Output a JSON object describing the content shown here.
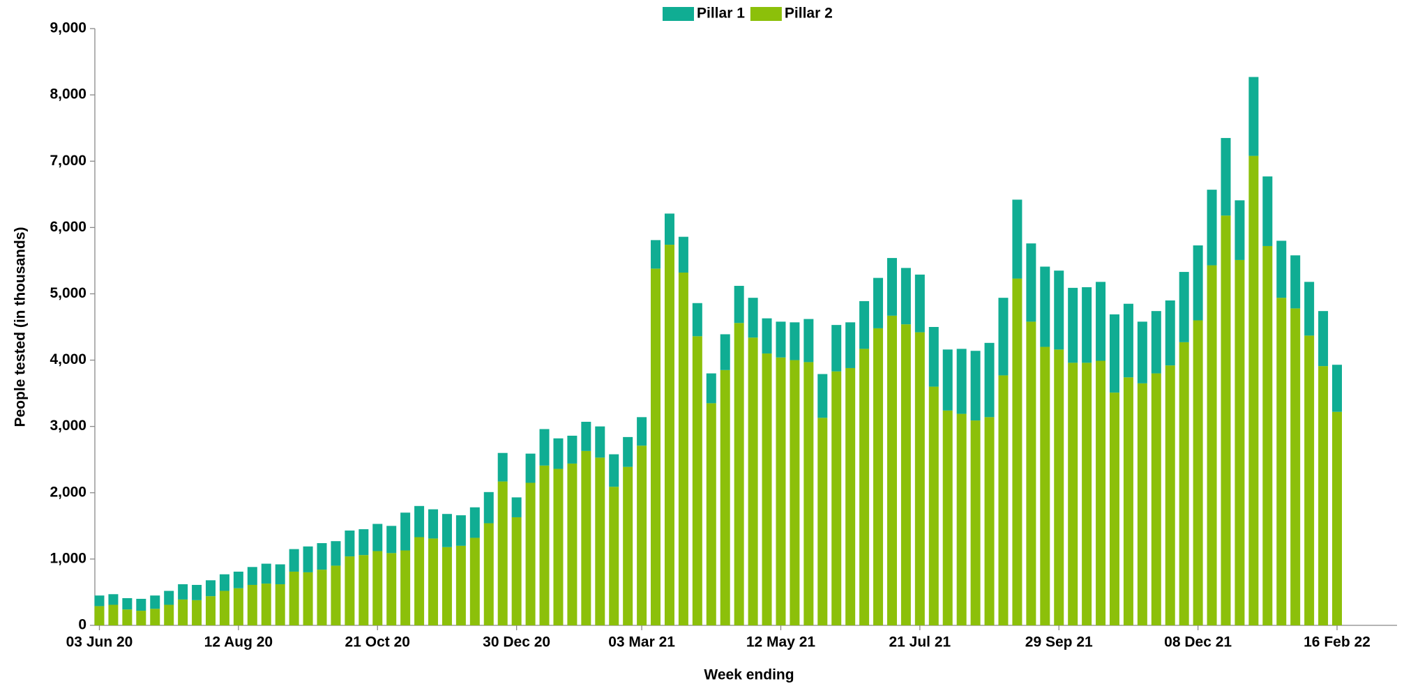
{
  "chart_data": {
    "type": "stacked_bar",
    "xlabel": "Week ending",
    "ylabel": "People tested (in thousands)",
    "categories": [
      "03 Jun 20",
      null,
      null,
      null,
      null,
      null,
      null,
      null,
      null,
      null,
      "12 Aug 20",
      null,
      null,
      null,
      null,
      null,
      null,
      null,
      null,
      null,
      "21 Oct 20",
      null,
      null,
      null,
      null,
      null,
      null,
      null,
      null,
      null,
      "30 Dec 20",
      null,
      null,
      null,
      null,
      null,
      null,
      null,
      null,
      "03 Mar 21",
      null,
      null,
      null,
      null,
      null,
      null,
      null,
      null,
      null,
      "12 May 21",
      null,
      null,
      null,
      null,
      null,
      null,
      null,
      null,
      null,
      "21 Jul 21",
      null,
      null,
      null,
      null,
      null,
      null,
      null,
      null,
      null,
      "29 Sep 21",
      null,
      null,
      null,
      null,
      null,
      null,
      null,
      null,
      null,
      "08 Dec 21",
      null,
      null,
      null,
      null,
      null,
      null,
      null,
      null,
      null,
      "16 Feb 22"
    ],
    "series": [
      {
        "name": "Pillar 1",
        "color": "#10ad93",
        "values": [
          160,
          160,
          170,
          180,
          200,
          210,
          230,
          230,
          240,
          250,
          250,
          270,
          300,
          300,
          340,
          390,
          400,
          370,
          390,
          390,
          410,
          410,
          570,
          470,
          440,
          500,
          460,
          460,
          470,
          430,
          300,
          440,
          550,
          460,
          420,
          440,
          470,
          490,
          450,
          430,
          430,
          470,
          540,
          500,
          450,
          540,
          560,
          600,
          530,
          540,
          570,
          650,
          660,
          700,
          690,
          720,
          760,
          870,
          850,
          870,
          900,
          920,
          980,
          1050,
          1120,
          1170,
          1190,
          1180,
          1210,
          1190,
          1130,
          1140,
          1190,
          1180,
          1110,
          930,
          940,
          980,
          1060,
          1130,
          1140,
          1170,
          900,
          1190,
          1050,
          860,
          800,
          810,
          830,
          710
        ]
      },
      {
        "name": "Pillar 2",
        "color": "#8cc00a",
        "values": [
          290,
          310,
          240,
          220,
          250,
          310,
          390,
          380,
          440,
          520,
          560,
          610,
          630,
          620,
          810,
          800,
          840,
          900,
          1040,
          1060,
          1120,
          1090,
          1130,
          1330,
          1310,
          1180,
          1200,
          1320,
          1540,
          2170,
          1630,
          2150,
          2410,
          2360,
          2440,
          2630,
          2530,
          2090,
          2390,
          2710,
          5380,
          5740,
          5320,
          4360,
          3350,
          3850,
          4560,
          4340,
          4100,
          4040,
          4000,
          3970,
          3130,
          3830,
          3880,
          4170,
          4480,
          4670,
          4540,
          4420,
          3600,
          3240,
          3190,
          3090,
          3140,
          3770,
          5230,
          4580,
          4200,
          4160,
          3960,
          3960,
          3990,
          3510,
          3740,
          3650,
          3800,
          3920,
          4270,
          4600,
          5430,
          6180,
          5510,
          7080,
          5720,
          4940,
          4780,
          4370,
          3910,
          3220
        ]
      }
    ],
    "ylim": [
      0,
      9000
    ],
    "yticks": [
      0,
      {
        "value": 1000,
        "label": "1,000"
      },
      {
        "value": 2000,
        "label": "2,000"
      },
      {
        "value": 3000,
        "label": "3,000"
      },
      {
        "value": 4000,
        "label": "4,000"
      },
      {
        "value": 5000,
        "label": "5,000"
      },
      {
        "value": 6000,
        "label": "6,000"
      },
      {
        "value": 7000,
        "label": "7,000"
      },
      {
        "value": 8000,
        "label": "8,000"
      },
      {
        "value": 9000,
        "label": "9,000"
      }
    ],
    "legend": "top"
  }
}
